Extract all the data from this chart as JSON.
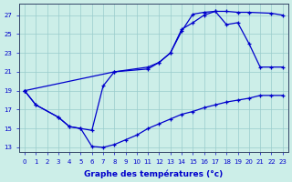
{
  "xlabel": "Graphe des températures (°c)",
  "bg_color": "#cceee8",
  "grid_color": "#99cccc",
  "line_color": "#0000cc",
  "curve1_x": [
    0,
    1,
    3,
    4,
    5,
    6,
    7,
    8,
    11,
    12,
    13,
    14,
    15,
    16,
    17,
    18,
    19,
    20,
    22,
    23
  ],
  "curve1_y": [
    19.0,
    17.5,
    16.2,
    15.2,
    15.0,
    14.8,
    19.5,
    21.0,
    21.5,
    22.0,
    23.0,
    25.3,
    27.1,
    27.3,
    27.4,
    27.4,
    27.3,
    27.3,
    27.2,
    27.0
  ],
  "curve2_x": [
    0,
    8,
    11,
    12,
    13,
    14,
    15,
    16,
    17,
    18,
    19,
    20,
    21,
    22,
    23
  ],
  "curve2_y": [
    19.0,
    21.0,
    21.3,
    22.0,
    23.0,
    25.5,
    26.2,
    27.0,
    27.4,
    26.0,
    26.2,
    24.0,
    21.5,
    21.5,
    21.5
  ],
  "curve3_x": [
    0,
    1,
    3,
    4,
    5,
    6,
    7,
    8,
    9,
    10,
    11,
    12,
    13,
    14,
    15,
    16,
    17,
    18,
    19,
    20,
    21,
    22,
    23
  ],
  "curve3_y": [
    19.0,
    17.5,
    16.2,
    15.2,
    15.0,
    13.1,
    13.0,
    13.3,
    13.8,
    14.3,
    15.0,
    15.5,
    16.0,
    16.5,
    16.8,
    17.2,
    17.5,
    17.8,
    18.0,
    18.2,
    18.5,
    18.5,
    18.5
  ],
  "xlim": [
    -0.5,
    23.5
  ],
  "ylim": [
    12.5,
    28.2
  ],
  "yticks": [
    13,
    15,
    17,
    19,
    21,
    23,
    25,
    27
  ],
  "xticks": [
    0,
    1,
    2,
    3,
    4,
    5,
    6,
    7,
    8,
    9,
    10,
    11,
    12,
    13,
    14,
    15,
    16,
    17,
    18,
    19,
    20,
    21,
    22,
    23
  ]
}
